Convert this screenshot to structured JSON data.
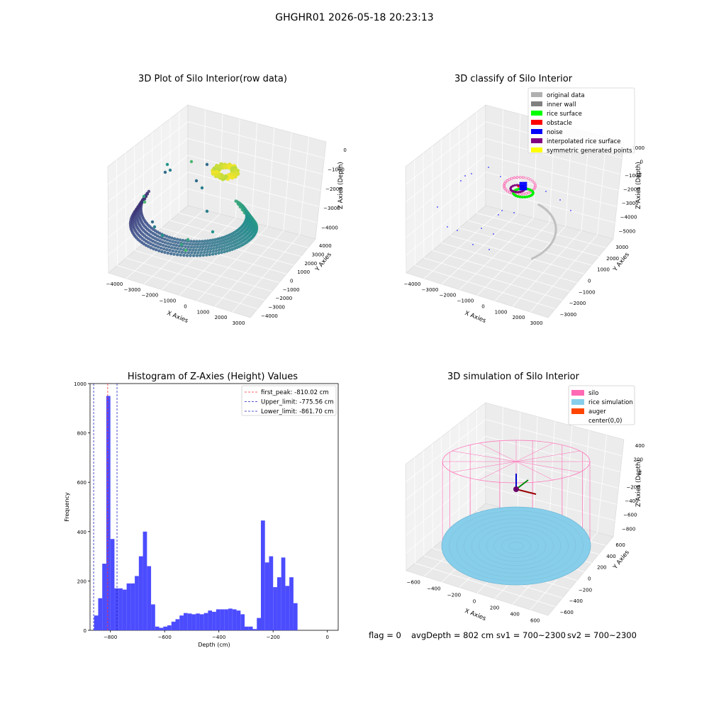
{
  "suptitle": "GHGHR01 2026-05-18 20:23:13",
  "status": {
    "flag": "flag = 0",
    "avg_depth": "avgDepth = 802 cm",
    "sv1": "sv1 = 700~2300",
    "sv2": "sv2 = 700~2300"
  },
  "colors": {
    "hist_bar": "#4c4cff",
    "first_peak": "#ff3333",
    "limits": "#2222bb",
    "silo": "#ff69b4",
    "rice": "#87ceeb",
    "auger": "#ff4500",
    "grid_pane": "#f2f2f2"
  },
  "chart_data": [
    {
      "type": "scatter",
      "projection": "3d",
      "title": "3D Plot of Silo Interior(row data)",
      "xlabel": "X Axies",
      "ylabel": "Y Axies",
      "zlabel": "Z Axies (Depth)",
      "x_ticks": [
        "−4000",
        "−3000",
        "−2000",
        "−1000",
        "0",
        "1000",
        "2000",
        "3000"
      ],
      "y_ticks": [
        "4000",
        "3000",
        "2000",
        "1000",
        "0",
        "−1000",
        "−2000",
        "−3000",
        "−4000"
      ],
      "z_ticks": [
        "0",
        "−1000",
        "−2000",
        "−3000",
        "−4000"
      ],
      "colormap": "viridis",
      "description_points": "spiral wall points colored by depth"
    },
    {
      "type": "scatter",
      "projection": "3d",
      "title": "3D classify of Silo Interior",
      "xlabel": "X Axies",
      "ylabel": "Y Axies",
      "zlabel": "Z Axies (Depth)",
      "x_ticks": [
        "−4000",
        "−3000",
        "−2000",
        "−1000",
        "0",
        "1000",
        "2000",
        "3000"
      ],
      "y_ticks": [
        "3000",
        "2000",
        "1000",
        "0",
        "−1000",
        "−2000",
        "−3000"
      ],
      "z_ticks": [
        "1000",
        "0",
        "−1000",
        "−2000",
        "−3000",
        "−4000",
        "−5000"
      ],
      "legend": [
        {
          "label": "original data",
          "color": "#b0b0b0"
        },
        {
          "label": "inner wall",
          "color": "#808080"
        },
        {
          "label": "rice surface",
          "color": "#00ff00"
        },
        {
          "label": "obstacle",
          "color": "#ff0000"
        },
        {
          "label": "noise",
          "color": "#0000ff"
        },
        {
          "label": "interpolated rice surface",
          "color": "#800080"
        },
        {
          "label": "symmetric generated points",
          "color": "#ffff00"
        }
      ],
      "legend_position": "top-right"
    },
    {
      "type": "bar",
      "title": "Histogram of Z-Axies (Height) Values",
      "xlabel": "Depth (cm)",
      "ylabel": "Frequency",
      "xlim": [
        -875,
        40
      ],
      "ylim": [
        0,
        1000
      ],
      "x_ticks": [
        -800,
        -600,
        -400,
        -200,
        0
      ],
      "y_ticks": [
        0,
        200,
        400,
        600,
        800,
        1000
      ],
      "bin_width": 15,
      "bin_start": -860,
      "values": [
        60,
        130,
        270,
        950,
        370,
        170,
        170,
        165,
        190,
        190,
        220,
        300,
        400,
        260,
        105,
        15,
        10,
        15,
        20,
        35,
        45,
        60,
        70,
        68,
        65,
        68,
        65,
        70,
        80,
        75,
        85,
        85,
        85,
        88,
        85,
        80,
        65,
        15,
        15,
        5,
        50,
        445,
        275,
        300,
        175,
        215,
        295,
        180,
        215,
        110
      ],
      "vlines": [
        {
          "label": "first_peak: -810.02 cm",
          "x": -810.02,
          "style": "dashed",
          "color": "#ff3333"
        },
        {
          "label": "Upper_limit: -775.56 cm",
          "x": -775.56,
          "style": "dashed",
          "color": "#2222bb"
        },
        {
          "label": "Lower_limit: -861.70 cm",
          "x": -861.7,
          "style": "dashed",
          "color": "#2222bb"
        }
      ],
      "legend_position": "top-right"
    },
    {
      "type": "scatter",
      "projection": "3d",
      "title": "3D simulation of Silo Interior",
      "xlabel": "X Axies",
      "ylabel": "Y Axies",
      "zlabel": "Z Axies (Depth)",
      "x_ticks": [
        "−600",
        "−400",
        "−200",
        "0",
        "200",
        "400",
        "600"
      ],
      "y_ticks": [
        "600",
        "400",
        "200",
        "0",
        "−200",
        "−400",
        "−600"
      ],
      "z_ticks": [
        "400",
        "200",
        "0",
        "−200",
        "−400",
        "−600",
        "−800"
      ],
      "legend": [
        {
          "label": "silo",
          "color": "#ff69b4"
        },
        {
          "label": "rice simulation",
          "color": "#87ceeb"
        },
        {
          "label": "auger",
          "color": "#ff4500"
        },
        {
          "label": "center(0,0)",
          "color": ""
        }
      ],
      "legend_position": "top-right"
    }
  ]
}
